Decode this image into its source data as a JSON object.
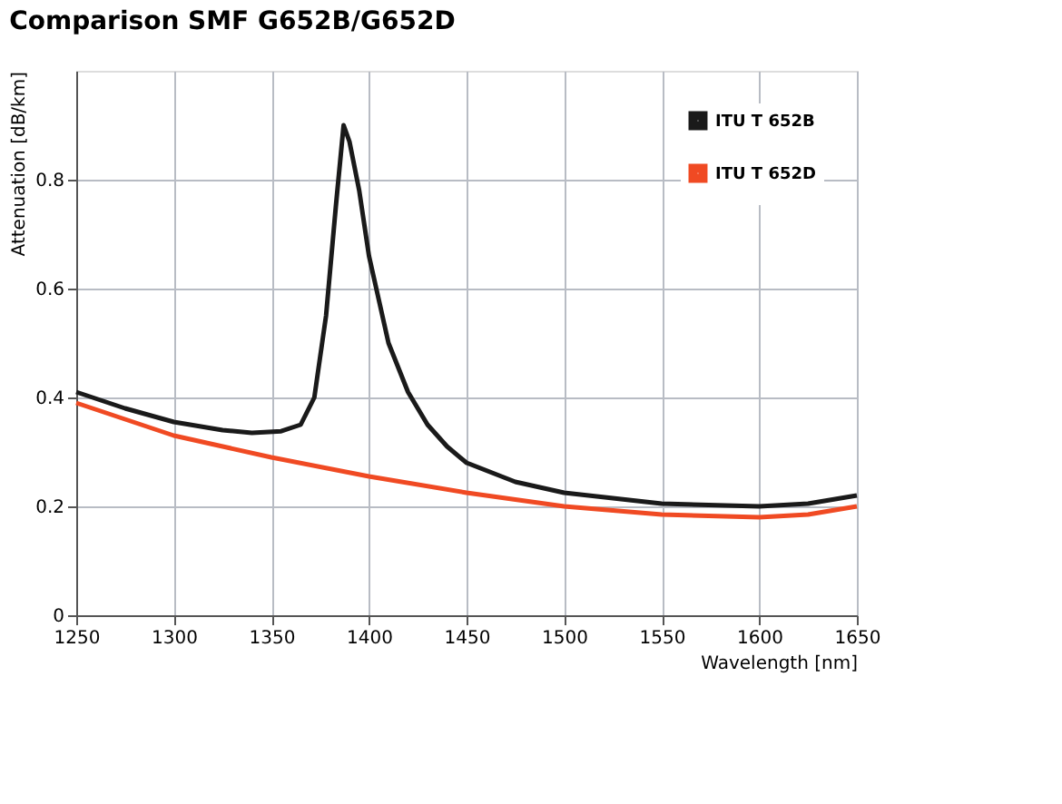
{
  "chart_data": {
    "type": "line",
    "title": "Comparison SMF G652B/G652D",
    "xlabel": "Wavelength [nm]",
    "ylabel": "Attenuation [dB/km]",
    "xlim": [
      1250,
      1650
    ],
    "xticks": [
      1250,
      1300,
      1350,
      1400,
      1450,
      1500,
      1550,
      1600,
      1650
    ],
    "ylim": [
      0,
      1.0
    ],
    "yticks": [
      0,
      0.2,
      0.4,
      0.6,
      0.8
    ],
    "grid": true,
    "legend": "top right",
    "line_style": "solid",
    "series": [
      {
        "name": "ITU T 652B",
        "color": "#1a1a1a",
        "x": [
          1250,
          1275,
          1300,
          1325,
          1340,
          1355,
          1365,
          1372,
          1378,
          1383,
          1387,
          1390,
          1395,
          1400,
          1410,
          1420,
          1430,
          1440,
          1450,
          1475,
          1500,
          1550,
          1600,
          1625,
          1650
        ],
        "values": [
          0.41,
          0.38,
          0.355,
          0.34,
          0.335,
          0.338,
          0.35,
          0.4,
          0.55,
          0.75,
          0.9,
          0.87,
          0.78,
          0.66,
          0.5,
          0.41,
          0.35,
          0.31,
          0.28,
          0.245,
          0.225,
          0.205,
          0.2,
          0.205,
          0.22
        ]
      },
      {
        "name": "ITU T 652D",
        "color": "#f04a23",
        "x": [
          1250,
          1300,
          1350,
          1400,
          1450,
          1500,
          1550,
          1600,
          1625,
          1650
        ],
        "values": [
          0.39,
          0.33,
          0.29,
          0.255,
          0.225,
          0.2,
          0.185,
          0.18,
          0.185,
          0.2
        ]
      }
    ]
  }
}
